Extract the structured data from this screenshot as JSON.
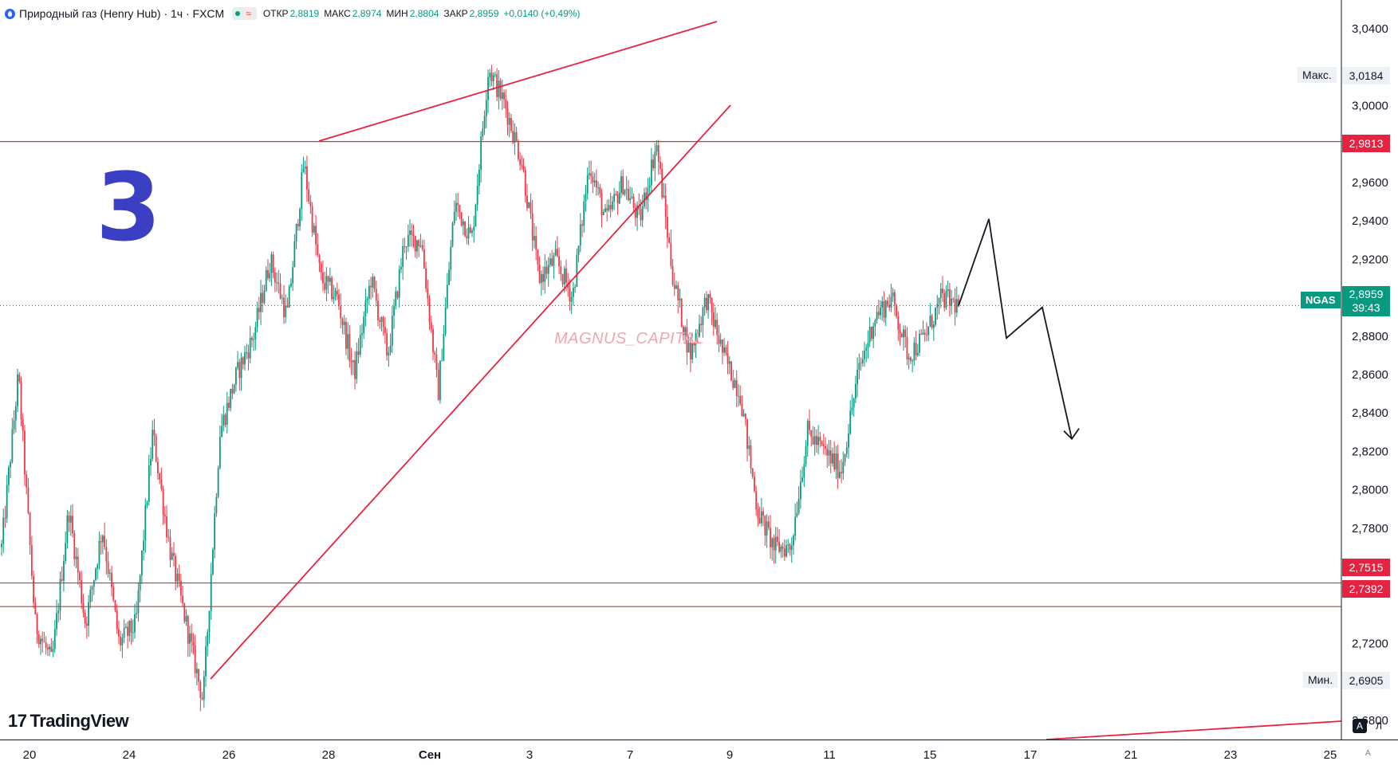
{
  "header": {
    "title": "Природный газ (Henry Hub) · 1ч · FXCM",
    "open_label": "ОТКР",
    "open": "2,8819",
    "high_label": "МАКС",
    "high": "2,8974",
    "low_label": "МИН",
    "low": "2,8804",
    "close_label": "ЗАКР",
    "close": "2,8959",
    "change": "+0,0140 (+0,49%)"
  },
  "annotation_number": "3",
  "watermark": "MAGNUS_CAPITAL",
  "brand": "TradingView",
  "price_scale": {
    "max_label": "Макс.",
    "max_value": "3,0184",
    "min_label": "Мин.",
    "min_value": "2,6905",
    "symbol": "NGAS",
    "last_price": "2,8959",
    "countdown": "39:43",
    "levels": [
      "2,9813",
      "2,7515",
      "2,7392"
    ]
  },
  "scale_buttons": {
    "auto": "A",
    "log": "Л",
    "corner": "A"
  },
  "colors": {
    "up": "#089981",
    "down": "#f23645",
    "level_line": "#b2443f",
    "trend_line": "#e5223f",
    "tag_red": "#e5223f",
    "tag_green": "#089981",
    "number_blue": "#3b3fc4"
  },
  "chart_data": {
    "type": "candlestick",
    "title": "Природный газ (Henry Hub)",
    "timeframe": "1ч",
    "ylim": [
      2.67,
      3.055
    ],
    "y_ticks": [
      2.68,
      2.7,
      2.72,
      2.74,
      2.76,
      2.78,
      2.8,
      2.82,
      2.84,
      2.86,
      2.88,
      2.9,
      2.92,
      2.94,
      2.96,
      2.98,
      3.0,
      3.02,
      3.04
    ],
    "y_tick_labels": [
      "2,6800",
      "2,7000",
      "2,7200",
      "",
      "2,7600",
      "2,7800",
      "2,8000",
      "2,8200",
      "2,8400",
      "2,8600",
      "2,8800",
      "",
      "2,9200",
      "2,9400",
      "2,9600",
      "",
      "3,0000",
      "",
      "3,0400"
    ],
    "x_ticks": [
      20,
      24,
      26,
      28,
      "Сен",
      3,
      7,
      9,
      11,
      15,
      17,
      21,
      23,
      25
    ],
    "x_tick_labels": [
      "20",
      "24",
      "26",
      "28",
      "Сен",
      "3",
      "7",
      "9",
      "11",
      "15",
      "17",
      "21",
      "23",
      "25"
    ],
    "price_path": [
      2.77,
      2.86,
      2.73,
      2.71,
      2.79,
      2.73,
      2.78,
      2.72,
      2.73,
      2.83,
      2.77,
      2.73,
      2.69,
      2.83,
      2.86,
      2.88,
      2.92,
      2.89,
      2.97,
      2.91,
      2.9,
      2.86,
      2.91,
      2.87,
      2.93,
      2.93,
      2.85,
      2.95,
      2.93,
      3.02,
      3.0,
      2.97,
      2.91,
      2.92,
      2.9,
      2.97,
      2.94,
      2.96,
      2.94,
      2.98,
      2.91,
      2.87,
      2.9,
      2.87,
      2.85,
      2.79,
      2.77,
      2.77,
      2.83,
      2.82,
      2.81,
      2.86,
      2.89,
      2.9,
      2.87,
      2.88,
      2.9,
      2.8959
    ],
    "horizontal_levels": [
      2.9813,
      2.7515,
      2.7392
    ],
    "last_price": 2.8959,
    "projection_path": [
      2.8959,
      2.941,
      2.879,
      2.895,
      2.8265
    ]
  }
}
